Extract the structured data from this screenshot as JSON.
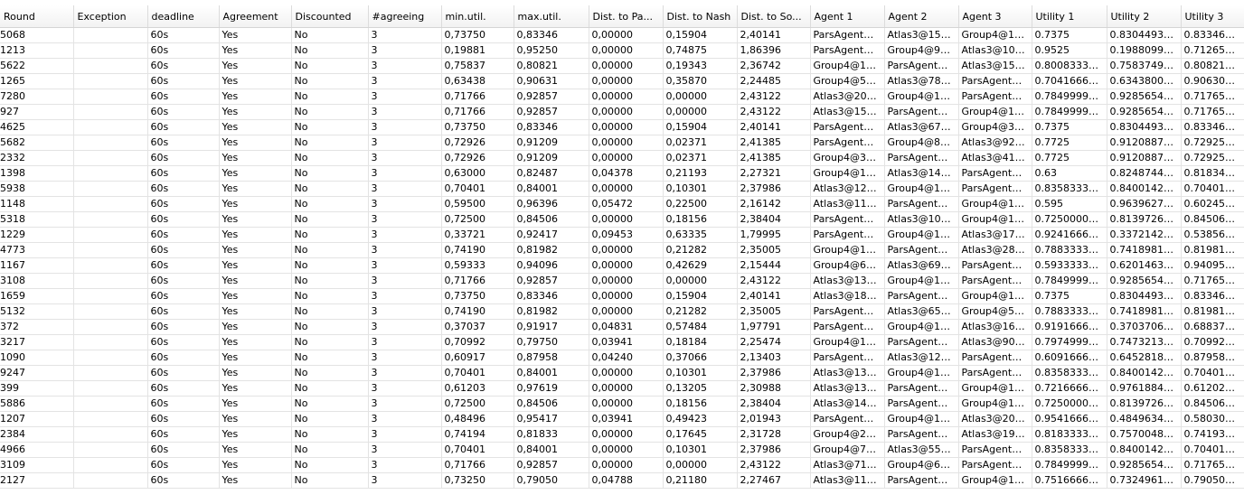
{
  "window": {
    "title_fragment": ""
  },
  "columns": [
    "Round",
    "Exception",
    "deadline",
    "Agreement",
    "Discounted",
    "#agreeing",
    "min.util.",
    "max.util.",
    "Dist. to Pa...",
    "Dist. to Nash",
    "Dist. to So...",
    "Agent 1",
    "Agent 2",
    "Agent 3",
    "Utility 1",
    "Utility 2",
    "Utility 3"
  ],
  "selected_row_index": 32,
  "rows": [
    [
      "5068",
      "",
      "60s",
      "Yes",
      "No",
      "3",
      "0,73750",
      "0,83346",
      "0,00000",
      "0,15904",
      "2,40141",
      "ParsAgent@...",
      "Atlas3@156...",
      "Group4@17...",
      "0.7375",
      "0.83044939...",
      "0.83346094"
    ],
    [
      "1213",
      "",
      "60s",
      "Yes",
      "No",
      "3",
      "0,19881",
      "0,95250",
      "0,00000",
      "0,74875",
      "1,86396",
      "ParsAgent@...",
      "Group4@99...",
      "Atlas3@105...",
      "0.9525",
      "0.19880995...",
      "0.71265435"
    ],
    [
      "5622",
      "",
      "60s",
      "Yes",
      "No",
      "3",
      "0,75837",
      "0,80821",
      "0,00000",
      "0,19343",
      "2,36742",
      "Group4@14...",
      "ParsAgent@...",
      "Atlas3@158...",
      "0.80083333...",
      "0.75837491...",
      "0.80821243"
    ],
    [
      "1265",
      "",
      "60s",
      "Yes",
      "No",
      "3",
      "0,63438",
      "0,90631",
      "0,00000",
      "0,35870",
      "2,24485",
      "Group4@54...",
      "Atlas3@783...",
      "ParsAgent@...",
      "0.70416666...",
      "0.63438006...",
      "0.90630773"
    ],
    [
      "7280",
      "",
      "60s",
      "Yes",
      "No",
      "3",
      "0,71766",
      "0,92857",
      "0,00000",
      "0,00000",
      "2,43122",
      "Atlas3@205...",
      "Group4@19...",
      "ParsAgent@...",
      "0.78499999...",
      "0.92856547...",
      "0.71765660"
    ],
    [
      "927",
      "",
      "60s",
      "Yes",
      "No",
      "3",
      "0,71766",
      "0,92857",
      "0,00000",
      "0,00000",
      "2,43122",
      "Atlas3@158...",
      "ParsAgent@...",
      "Group4@14...",
      "0.78499999...",
      "0.92856547...",
      "0.71765660"
    ],
    [
      "4625",
      "",
      "60s",
      "Yes",
      "No",
      "3",
      "0,73750",
      "0,83346",
      "0,00000",
      "0,15904",
      "2,40141",
      "ParsAgent@...",
      "Atlas3@673...",
      "Group4@39...",
      "0.7375",
      "0.83044939...",
      "0.83346094"
    ],
    [
      "5682",
      "",
      "60s",
      "Yes",
      "No",
      "3",
      "0,72926",
      "0,91209",
      "0,00000",
      "0,02371",
      "2,41385",
      "ParsAgent@...",
      "Group4@85...",
      "Atlas3@922...",
      "0.7725",
      "0.91208873...",
      "0.72925994"
    ],
    [
      "2332",
      "",
      "60s",
      "Yes",
      "No",
      "3",
      "0,72926",
      "0,91209",
      "0,00000",
      "0,02371",
      "2,41385",
      "Group4@30...",
      "ParsAgent@...",
      "Atlas3@413...",
      "0.7725",
      "0.91208873...",
      "0.72925994"
    ],
    [
      "1398",
      "",
      "60s",
      "Yes",
      "No",
      "3",
      "0,63000",
      "0,82487",
      "0,04378",
      "0,21193",
      "2,27321",
      "Group4@15...",
      "Atlas3@145...",
      "ParsAgent@...",
      "0.63",
      "0.82487444...",
      "0.81834021"
    ],
    [
      "5938",
      "",
      "60s",
      "Yes",
      "No",
      "3",
      "0,70401",
      "0,84001",
      "0,00000",
      "0,10301",
      "2,37986",
      "Atlas3@127...",
      "Group4@11...",
      "ParsAgent@...",
      "0.83583333...",
      "0.84001425...",
      "0.70401143"
    ],
    [
      "1148",
      "",
      "60s",
      "Yes",
      "No",
      "3",
      "0,59500",
      "0,96396",
      "0,05472",
      "0,22500",
      "2,16142",
      "Atlas3@117...",
      "ParsAgent@...",
      "Group4@12...",
      "0.595",
      "0.96396275...",
      "0.60245494"
    ],
    [
      "5318",
      "",
      "60s",
      "Yes",
      "No",
      "3",
      "0,72500",
      "0,84506",
      "0,00000",
      "0,18156",
      "2,38404",
      "ParsAgent@...",
      "Atlas3@108...",
      "Group4@11...",
      "0.72500000...",
      "0.81397265...",
      "0.84506429"
    ],
    [
      "1229",
      "",
      "60s",
      "Yes",
      "No",
      "3",
      "0,33721",
      "0,92417",
      "0,09453",
      "0,63335",
      "1,79995",
      "ParsAgent@...",
      "Group4@16...",
      "Atlas3@173...",
      "0.92416666...",
      "0.33721428...",
      "0.53856857"
    ],
    [
      "4773",
      "",
      "60s",
      "Yes",
      "No",
      "3",
      "0,74190",
      "0,81982",
      "0,00000",
      "0,21282",
      "2,35005",
      "Group4@19...",
      "ParsAgent@...",
      "Atlas3@280...",
      "0.78833333...",
      "0.74189817...",
      "0.81981578"
    ],
    [
      "1167",
      "",
      "60s",
      "Yes",
      "No",
      "3",
      "0,59333",
      "0,94096",
      "0,00000",
      "0,42629",
      "2,15444",
      "Group4@65...",
      "Atlas3@697...",
      "ParsAgent@...",
      "0.59333333...",
      "0.62014639...",
      "0.94095610"
    ],
    [
      "3108",
      "",
      "60s",
      "Yes",
      "No",
      "3",
      "0,71766",
      "0,92857",
      "0,00000",
      "0,00000",
      "2,43122",
      "Atlas3@139...",
      "Group4@15...",
      "ParsAgent@...",
      "0.78499999...",
      "0.92856547...",
      "0.71765660"
    ],
    [
      "1659",
      "",
      "60s",
      "Yes",
      "No",
      "3",
      "0,73750",
      "0,83346",
      "0,00000",
      "0,15904",
      "2,40141",
      "Atlas3@186...",
      "ParsAgent@...",
      "Group4@17...",
      "0.7375",
      "0.83044939...",
      "0.83346094"
    ],
    [
      "5132",
      "",
      "60s",
      "Yes",
      "No",
      "3",
      "0,74190",
      "0,81982",
      "0,00000",
      "0,21282",
      "2,35005",
      "ParsAgent@...",
      "Atlas3@650...",
      "Group4@58...",
      "0.78833333...",
      "0.74189817...",
      "0.81981578"
    ],
    [
      "372",
      "",
      "60s",
      "Yes",
      "No",
      "3",
      "0,37037",
      "0,91917",
      "0,04831",
      "0,57484",
      "1,97791",
      "ParsAgent@...",
      "Group4@16...",
      "Atlas3@168...",
      "0.91916666...",
      "0.37037061...",
      "0.68837209"
    ],
    [
      "3217",
      "",
      "60s",
      "Yes",
      "No",
      "3",
      "0,70992",
      "0,79750",
      "0,03941",
      "0,18184",
      "2,25474",
      "Group4@10...",
      "ParsAgent@...",
      "Atlas3@906...",
      "0.79749999...",
      "0.74732134...",
      "0.70992104"
    ],
    [
      "1090",
      "",
      "60s",
      "Yes",
      "No",
      "3",
      "0,60917",
      "0,87958",
      "0,04240",
      "0,37066",
      "2,13403",
      "ParsAgent@...",
      "Atlas3@123...",
      "ParsAgent@...",
      "0.60916666...",
      "0.64528185...",
      "0.87958363"
    ],
    [
      "9247",
      "",
      "60s",
      "Yes",
      "No",
      "3",
      "0,70401",
      "0,84001",
      "0,00000",
      "0,10301",
      "2,37986",
      "Atlas3@133...",
      "Group4@11...",
      "ParsAgent@...",
      "0.83583333...",
      "0.84001425...",
      "0.70401143"
    ],
    [
      "399",
      "",
      "60s",
      "Yes",
      "No",
      "3",
      "0,61203",
      "0,97619",
      "0,00000",
      "0,13205",
      "2,30988",
      "Atlas3@137...",
      "ParsAgent@...",
      "Group4@14...",
      "0.72166666...",
      "0.97618849...",
      "0.61202940"
    ],
    [
      "5886",
      "",
      "60s",
      "Yes",
      "No",
      "3",
      "0,72500",
      "0,84506",
      "0,00000",
      "0,18156",
      "2,38404",
      "Atlas3@145...",
      "ParsAgent@...",
      "Group4@13...",
      "0.72500000...",
      "0.81397265...",
      "0.84506429"
    ],
    [
      "1207",
      "",
      "60s",
      "Yes",
      "No",
      "3",
      "0,48496",
      "0,95417",
      "0,03941",
      "0,49423",
      "2,01943",
      "ParsAgent@...",
      "Group4@19...",
      "Atlas3@200...",
      "0.95416666...",
      "0.48496343...",
      "0.58030331"
    ],
    [
      "2384",
      "",
      "60s",
      "Yes",
      "No",
      "3",
      "0,74194",
      "0,81833",
      "0,00000",
      "0,17645",
      "2,31728",
      "Group4@20...",
      "ParsAgent@...",
      "Atlas3@193...",
      "0.81833333...",
      "0.75700481...",
      "0.74193885"
    ],
    [
      "4966",
      "",
      "60s",
      "Yes",
      "No",
      "3",
      "0,70401",
      "0,84001",
      "0,00000",
      "0,10301",
      "2,37986",
      "Group4@77...",
      "Atlas3@553...",
      "ParsAgent@...",
      "0.83583333...",
      "0.84001425...",
      "0.70401143"
    ],
    [
      "3109",
      "",
      "60s",
      "Yes",
      "No",
      "3",
      "0,71766",
      "0,92857",
      "0,00000",
      "0,00000",
      "2,43122",
      "Atlas3@712...",
      "Group4@61...",
      "ParsAgent@...",
      "0.78499999...",
      "0.92856547...",
      "0.71765660"
    ],
    [
      "2127",
      "",
      "60s",
      "Yes",
      "No",
      "3",
      "0,73250",
      "0,79050",
      "0,04788",
      "0,21180",
      "2,27467",
      "Atlas3@115...",
      "ParsAgent@...",
      "Group4@13...",
      "0.75166666...",
      "0.73249614...",
      "0.79050336"
    ]
  ],
  "colors": {
    "selection": "#3399ff",
    "grid_line": "#e3e3e3",
    "header_bg": "#f7f7f7"
  }
}
